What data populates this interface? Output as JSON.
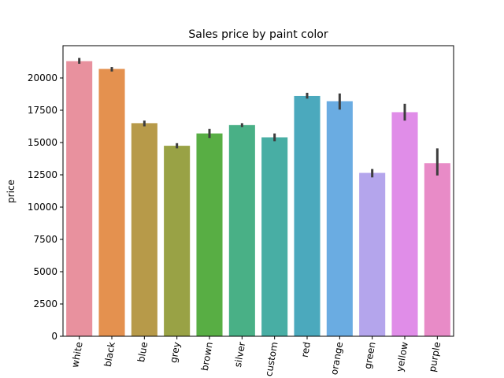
{
  "chart_data": {
    "type": "bar",
    "title": "Sales price by paint color",
    "xlabel": "",
    "ylabel": "price",
    "categories": [
      "white",
      "black",
      "blue",
      "grey",
      "brown",
      "silver",
      "custom",
      "red",
      "orange",
      "green",
      "yellow",
      "purple"
    ],
    "values": [
      21300,
      20700,
      16500,
      14750,
      15700,
      16350,
      15400,
      18600,
      18200,
      12650,
      17350,
      13400
    ],
    "error_low": [
      21100,
      20500,
      16250,
      14550,
      15350,
      16200,
      15100,
      18400,
      17550,
      12300,
      16700,
      12450
    ],
    "error_high": [
      21550,
      20850,
      16700,
      14950,
      16050,
      16500,
      15700,
      18850,
      18800,
      12950,
      18000,
      14550
    ],
    "colors": [
      "#e8919e",
      "#e4914f",
      "#b79a49",
      "#99a245",
      "#58ae44",
      "#49b086",
      "#48aea4",
      "#4ba9bd",
      "#6aace2",
      "#b4a5ec",
      "#e08de8",
      "#e88bc7"
    ],
    "ylim": [
      0,
      22500
    ],
    "yticks": [
      0,
      2500,
      5000,
      7500,
      10000,
      12500,
      15000,
      17500,
      20000
    ],
    "ytick_labels": [
      "0",
      "2500",
      "5000",
      "7500",
      "10000",
      "12500",
      "15000",
      "17500",
      "20000"
    ],
    "grid": false,
    "legend": "none"
  }
}
